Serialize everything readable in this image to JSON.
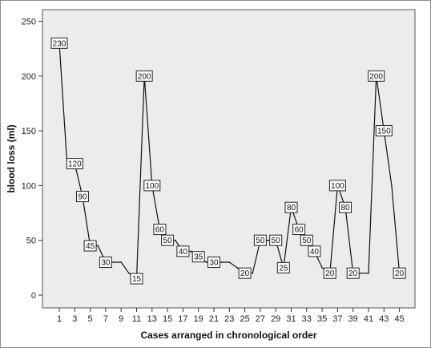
{
  "chart_data": {
    "type": "line",
    "title": "",
    "xlabel": "Cases arranged in chronological order",
    "ylabel": "blood loss (ml)",
    "x": [
      1,
      2,
      3,
      4,
      5,
      6,
      7,
      8,
      9,
      10,
      11,
      12,
      13,
      14,
      15,
      16,
      17,
      18,
      19,
      20,
      21,
      22,
      23,
      24,
      25,
      26,
      27,
      28,
      29,
      30,
      31,
      32,
      33,
      34,
      35,
      36,
      37,
      38,
      39,
      40,
      41,
      42,
      43,
      44,
      45
    ],
    "series": [
      {
        "values": [
          230,
          120,
          120,
          90,
          45,
          45,
          30,
          30,
          30,
          20,
          15,
          200,
          100,
          60,
          50,
          50,
          40,
          40,
          35,
          30,
          30,
          30,
          30,
          25,
          20,
          20,
          50,
          50,
          50,
          25,
          80,
          60,
          50,
          40,
          25,
          20,
          100,
          80,
          20,
          20,
          20,
          200,
          150,
          100,
          20
        ]
      }
    ],
    "data_labels": [
      {
        "x": 1,
        "y": 230,
        "text": "230"
      },
      {
        "x": 3,
        "y": 120,
        "text": "120"
      },
      {
        "x": 4,
        "y": 90,
        "text": "90"
      },
      {
        "x": 5,
        "y": 45,
        "text": "45"
      },
      {
        "x": 7,
        "y": 30,
        "text": "30"
      },
      {
        "x": 11,
        "y": 15,
        "text": "15"
      },
      {
        "x": 12,
        "y": 200,
        "text": "200"
      },
      {
        "x": 13,
        "y": 100,
        "text": "100"
      },
      {
        "x": 14,
        "y": 60,
        "text": "60"
      },
      {
        "x": 15,
        "y": 50,
        "text": "50"
      },
      {
        "x": 17,
        "y": 40,
        "text": "40"
      },
      {
        "x": 19,
        "y": 35,
        "text": "35"
      },
      {
        "x": 21,
        "y": 30,
        "text": "30"
      },
      {
        "x": 25,
        "y": 20,
        "text": "20"
      },
      {
        "x": 27,
        "y": 50,
        "text": "50"
      },
      {
        "x": 29,
        "y": 50,
        "text": "50"
      },
      {
        "x": 30,
        "y": 25,
        "text": "25"
      },
      {
        "x": 31,
        "y": 80,
        "text": "80"
      },
      {
        "x": 32,
        "y": 60,
        "text": "60"
      },
      {
        "x": 33,
        "y": 50,
        "text": "50"
      },
      {
        "x": 34,
        "y": 40,
        "text": "40"
      },
      {
        "x": 36,
        "y": 20,
        "text": "20"
      },
      {
        "x": 37,
        "y": 100,
        "text": "100"
      },
      {
        "x": 38,
        "y": 80,
        "text": "80"
      },
      {
        "x": 39,
        "y": 20,
        "text": "20"
      },
      {
        "x": 42,
        "y": 200,
        "text": "200"
      },
      {
        "x": 43,
        "y": 150,
        "text": "150"
      },
      {
        "x": 45,
        "y": 20,
        "text": "20"
      }
    ],
    "x_ticks": [
      "1",
      "3",
      "5",
      "7",
      "9",
      "11",
      "13",
      "15",
      "17",
      "19",
      "21",
      "23",
      "25",
      "27",
      "29",
      "31",
      "33",
      "35",
      "37",
      "39",
      "41",
      "43",
      "45"
    ],
    "y_ticks": [
      "0",
      "50",
      "100",
      "150",
      "200",
      "250"
    ],
    "xlim": [
      0,
      46
    ],
    "ylim": [
      -10,
      255
    ],
    "grid": false,
    "colors": {
      "plot_background": "#ececec",
      "line": "#111111",
      "label_box": "#ffffff",
      "axis": "#333333"
    }
  }
}
